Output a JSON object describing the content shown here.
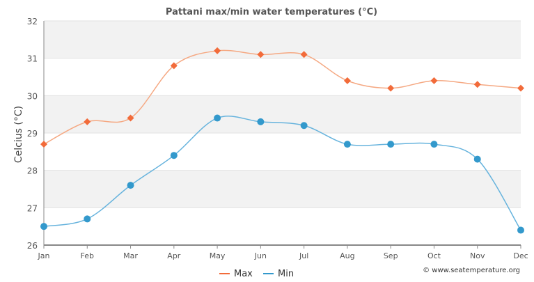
{
  "chart_data": {
    "type": "line",
    "title": "Pattani max/min water temperatures (°C)",
    "xlabel": "",
    "ylabel": "Celcius (°C)",
    "categories": [
      "Jan",
      "Feb",
      "Mar",
      "Apr",
      "May",
      "Jun",
      "Jul",
      "Aug",
      "Sep",
      "Oct",
      "Nov",
      "Dec"
    ],
    "ylim": [
      26,
      32
    ],
    "yticks": [
      26,
      27,
      28,
      29,
      30,
      31,
      32
    ],
    "grid": true,
    "legend_position": "bottom-center",
    "series": [
      {
        "name": "Max",
        "color": "#f26b3a",
        "line_color": "#f5a882",
        "marker": "diamond",
        "values": [
          28.7,
          29.3,
          29.4,
          30.8,
          31.2,
          31.1,
          31.1,
          30.4,
          30.2,
          30.4,
          30.3,
          30.2
        ]
      },
      {
        "name": "Min",
        "color": "#3399cc",
        "line_color": "#66b3dd",
        "marker": "circle",
        "values": [
          26.5,
          26.7,
          27.6,
          28.4,
          29.4,
          29.3,
          29.2,
          28.7,
          28.7,
          28.7,
          28.3,
          26.4
        ]
      }
    ]
  },
  "credit": "© www.seatemperature.org"
}
